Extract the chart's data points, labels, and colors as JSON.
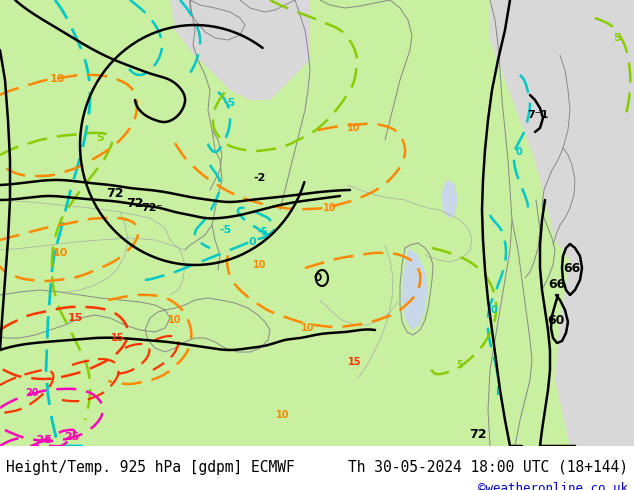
{
  "title_left": "Height/Temp. 925 hPa [gdpm] ECMWF",
  "title_right": "Th 30-05-2024 18:00 UTC (18+144)",
  "credit": "©weatheronline.co.uk",
  "title_fontsize": 10.5,
  "credit_fontsize": 9,
  "credit_color": "#0000cc",
  "figsize": [
    6.34,
    4.9
  ],
  "dpi": 100,
  "land_green": "#c8f0a0",
  "land_light_green": "#daf5b0",
  "sea_gray": "#d8d8d8",
  "sea_light": "#e8e8e8",
  "coast_color": "#888888",
  "border_color": "#aaaaaa",
  "geo_black": "#000000",
  "temp_cyan": "#00c8c8",
  "temp_lgreen": "#88cc00",
  "temp_orange": "#ff8800",
  "temp_red": "#ff3300",
  "temp_pink": "#ff00bb"
}
